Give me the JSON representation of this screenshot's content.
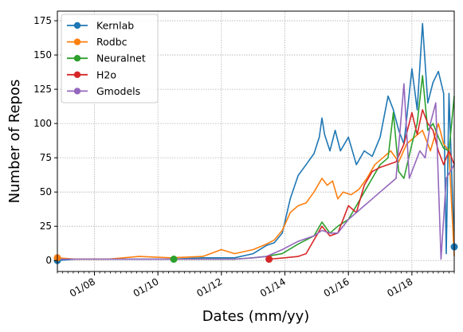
{
  "chart_data": {
    "type": "line",
    "xlabel": "Dates (mm/yy)",
    "ylabel": "Number of Repos",
    "x_ticks": [
      "01/08",
      "01/10",
      "01/12",
      "01/14",
      "01/16",
      "01/18"
    ],
    "y_ticks": [
      0,
      25,
      50,
      75,
      100,
      125,
      150,
      175
    ],
    "xlim": [
      "2006-11",
      "2019-05"
    ],
    "ylim": [
      -8,
      182
    ],
    "grid": true,
    "legend_position": "top-left",
    "series": [
      {
        "name": "Kernlab",
        "color": "#1f77b4",
        "points": [
          [
            "2006-11",
            0
          ],
          [
            "2007-06",
            1
          ],
          [
            "2008-06",
            1
          ],
          [
            "2009-06",
            1
          ],
          [
            "2010-06",
            1
          ],
          [
            "2011-06",
            2
          ],
          [
            "2012-06",
            2
          ],
          [
            "2013-01",
            5
          ],
          [
            "2013-06",
            11
          ],
          [
            "2013-09",
            13
          ],
          [
            "2013-12",
            20
          ],
          [
            "2014-03",
            45
          ],
          [
            "2014-06",
            62
          ],
          [
            "2014-09",
            70
          ],
          [
            "2014-12",
            78
          ],
          [
            "2015-02",
            90
          ],
          [
            "2015-03",
            104
          ],
          [
            "2015-04",
            92
          ],
          [
            "2015-06",
            80
          ],
          [
            "2015-08",
            95
          ],
          [
            "2015-10",
            80
          ],
          [
            "2016-01",
            90
          ],
          [
            "2016-04",
            70
          ],
          [
            "2016-07",
            80
          ],
          [
            "2016-10",
            76
          ],
          [
            "2017-01",
            90
          ],
          [
            "2017-04",
            120
          ],
          [
            "2017-06",
            110
          ],
          [
            "2017-08",
            95
          ],
          [
            "2017-10",
            85
          ],
          [
            "2018-01",
            140
          ],
          [
            "2018-03",
            110
          ],
          [
            "2018-05",
            173
          ],
          [
            "2018-07",
            115
          ],
          [
            "2018-09",
            130
          ],
          [
            "2018-11",
            138
          ],
          [
            "2019-01",
            122
          ],
          [
            "2019-02",
            5
          ],
          [
            "2019-03",
            122
          ],
          [
            "2019-05",
            10
          ]
        ]
      },
      {
        "name": "Rodbc",
        "color": "#ff7f0e",
        "points": [
          [
            "2006-11",
            2
          ],
          [
            "2007-06",
            1
          ],
          [
            "2008-06",
            1
          ],
          [
            "2009-06",
            3
          ],
          [
            "2010-06",
            2
          ],
          [
            "2011-06",
            3
          ],
          [
            "2012-01",
            8
          ],
          [
            "2012-06",
            5
          ],
          [
            "2013-01",
            8
          ],
          [
            "2013-06",
            12
          ],
          [
            "2013-09",
            15
          ],
          [
            "2013-12",
            22
          ],
          [
            "2014-03",
            35
          ],
          [
            "2014-06",
            40
          ],
          [
            "2014-09",
            42
          ],
          [
            "2014-12",
            50
          ],
          [
            "2015-03",
            60
          ],
          [
            "2015-05",
            55
          ],
          [
            "2015-07",
            58
          ],
          [
            "2015-09",
            45
          ],
          [
            "2015-11",
            50
          ],
          [
            "2016-02",
            48
          ],
          [
            "2016-05",
            52
          ],
          [
            "2016-08",
            60
          ],
          [
            "2016-11",
            70
          ],
          [
            "2017-02",
            75
          ],
          [
            "2017-05",
            80
          ],
          [
            "2017-08",
            72
          ],
          [
            "2017-11",
            85
          ],
          [
            "2018-02",
            90
          ],
          [
            "2018-05",
            95
          ],
          [
            "2018-08",
            80
          ],
          [
            "2018-11",
            100
          ],
          [
            "2019-01",
            85
          ],
          [
            "2019-03",
            80
          ],
          [
            "2019-05",
            3
          ]
        ]
      },
      {
        "name": "Neuralnet",
        "color": "#2ca02c",
        "points": [
          [
            "2010-07",
            1
          ],
          [
            "2011-06",
            1
          ],
          [
            "2012-06",
            1
          ],
          [
            "2013-01",
            2
          ],
          [
            "2013-06",
            3
          ],
          [
            "2013-12",
            5
          ],
          [
            "2014-06",
            12
          ],
          [
            "2014-12",
            18
          ],
          [
            "2015-03",
            28
          ],
          [
            "2015-06",
            20
          ],
          [
            "2015-09",
            25
          ],
          [
            "2016-01",
            30
          ],
          [
            "2016-04",
            40
          ],
          [
            "2016-07",
            50
          ],
          [
            "2016-10",
            60
          ],
          [
            "2017-01",
            70
          ],
          [
            "2017-04",
            75
          ],
          [
            "2017-06",
            108
          ],
          [
            "2017-08",
            65
          ],
          [
            "2017-10",
            60
          ],
          [
            "2018-01",
            85
          ],
          [
            "2018-03",
            100
          ],
          [
            "2018-05",
            135
          ],
          [
            "2018-07",
            95
          ],
          [
            "2018-09",
            100
          ],
          [
            "2018-11",
            90
          ],
          [
            "2019-01",
            82
          ],
          [
            "2019-03",
            80
          ],
          [
            "2019-05",
            120
          ]
        ]
      },
      {
        "name": "H2o",
        "color": "#d62728",
        "points": [
          [
            "2013-07",
            1
          ],
          [
            "2014-01",
            2
          ],
          [
            "2014-06",
            3
          ],
          [
            "2014-09",
            5
          ],
          [
            "2014-12",
            15
          ],
          [
            "2015-03",
            25
          ],
          [
            "2015-06",
            18
          ],
          [
            "2015-09",
            20
          ],
          [
            "2016-01",
            40
          ],
          [
            "2016-04",
            35
          ],
          [
            "2016-07",
            55
          ],
          [
            "2016-10",
            65
          ],
          [
            "2017-01",
            68
          ],
          [
            "2017-04",
            70
          ],
          [
            "2017-07",
            72
          ],
          [
            "2017-10",
            85
          ],
          [
            "2018-01",
            108
          ],
          [
            "2018-03",
            92
          ],
          [
            "2018-05",
            110
          ],
          [
            "2018-07",
            100
          ],
          [
            "2018-09",
            95
          ],
          [
            "2018-11",
            80
          ],
          [
            "2019-01",
            70
          ],
          [
            "2019-03",
            80
          ],
          [
            "2019-05",
            70
          ]
        ]
      },
      {
        "name": "Gmodels",
        "color": "#9467bd",
        "points": [
          [
            "2006-11",
            1
          ],
          [
            "2008-06",
            1
          ],
          [
            "2010-06",
            1
          ],
          [
            "2012-06",
            1
          ],
          [
            "2013-01",
            2
          ],
          [
            "2013-06",
            3
          ],
          [
            "2013-12",
            8
          ],
          [
            "2014-06",
            14
          ],
          [
            "2014-12",
            18
          ],
          [
            "2015-03",
            22
          ],
          [
            "2015-06",
            20
          ],
          [
            "2015-09",
            20
          ],
          [
            "2016-01",
            30
          ],
          [
            "2016-04",
            35
          ],
          [
            "2016-07",
            40
          ],
          [
            "2016-10",
            45
          ],
          [
            "2017-01",
            50
          ],
          [
            "2017-04",
            55
          ],
          [
            "2017-07",
            60
          ],
          [
            "2017-10",
            129
          ],
          [
            "2017-12",
            60
          ],
          [
            "2018-02",
            70
          ],
          [
            "2018-04",
            80
          ],
          [
            "2018-06",
            75
          ],
          [
            "2018-08",
            100
          ],
          [
            "2018-10",
            115
          ],
          [
            "2018-12",
            1
          ],
          [
            "2019-02",
            60
          ],
          [
            "2019-05",
            70
          ]
        ]
      }
    ],
    "start_markers": [
      {
        "series": "Kernlab",
        "x": "2006-11",
        "y": 0
      },
      {
        "series": "Rodbc",
        "x": "2006-11",
        "y": 2
      },
      {
        "series": "Neuralnet",
        "x": "2010-07",
        "y": 1
      },
      {
        "series": "H2o",
        "x": "2013-07",
        "y": 1
      },
      {
        "series": "Kernlab",
        "x": "2019-05",
        "y": 10
      }
    ]
  }
}
